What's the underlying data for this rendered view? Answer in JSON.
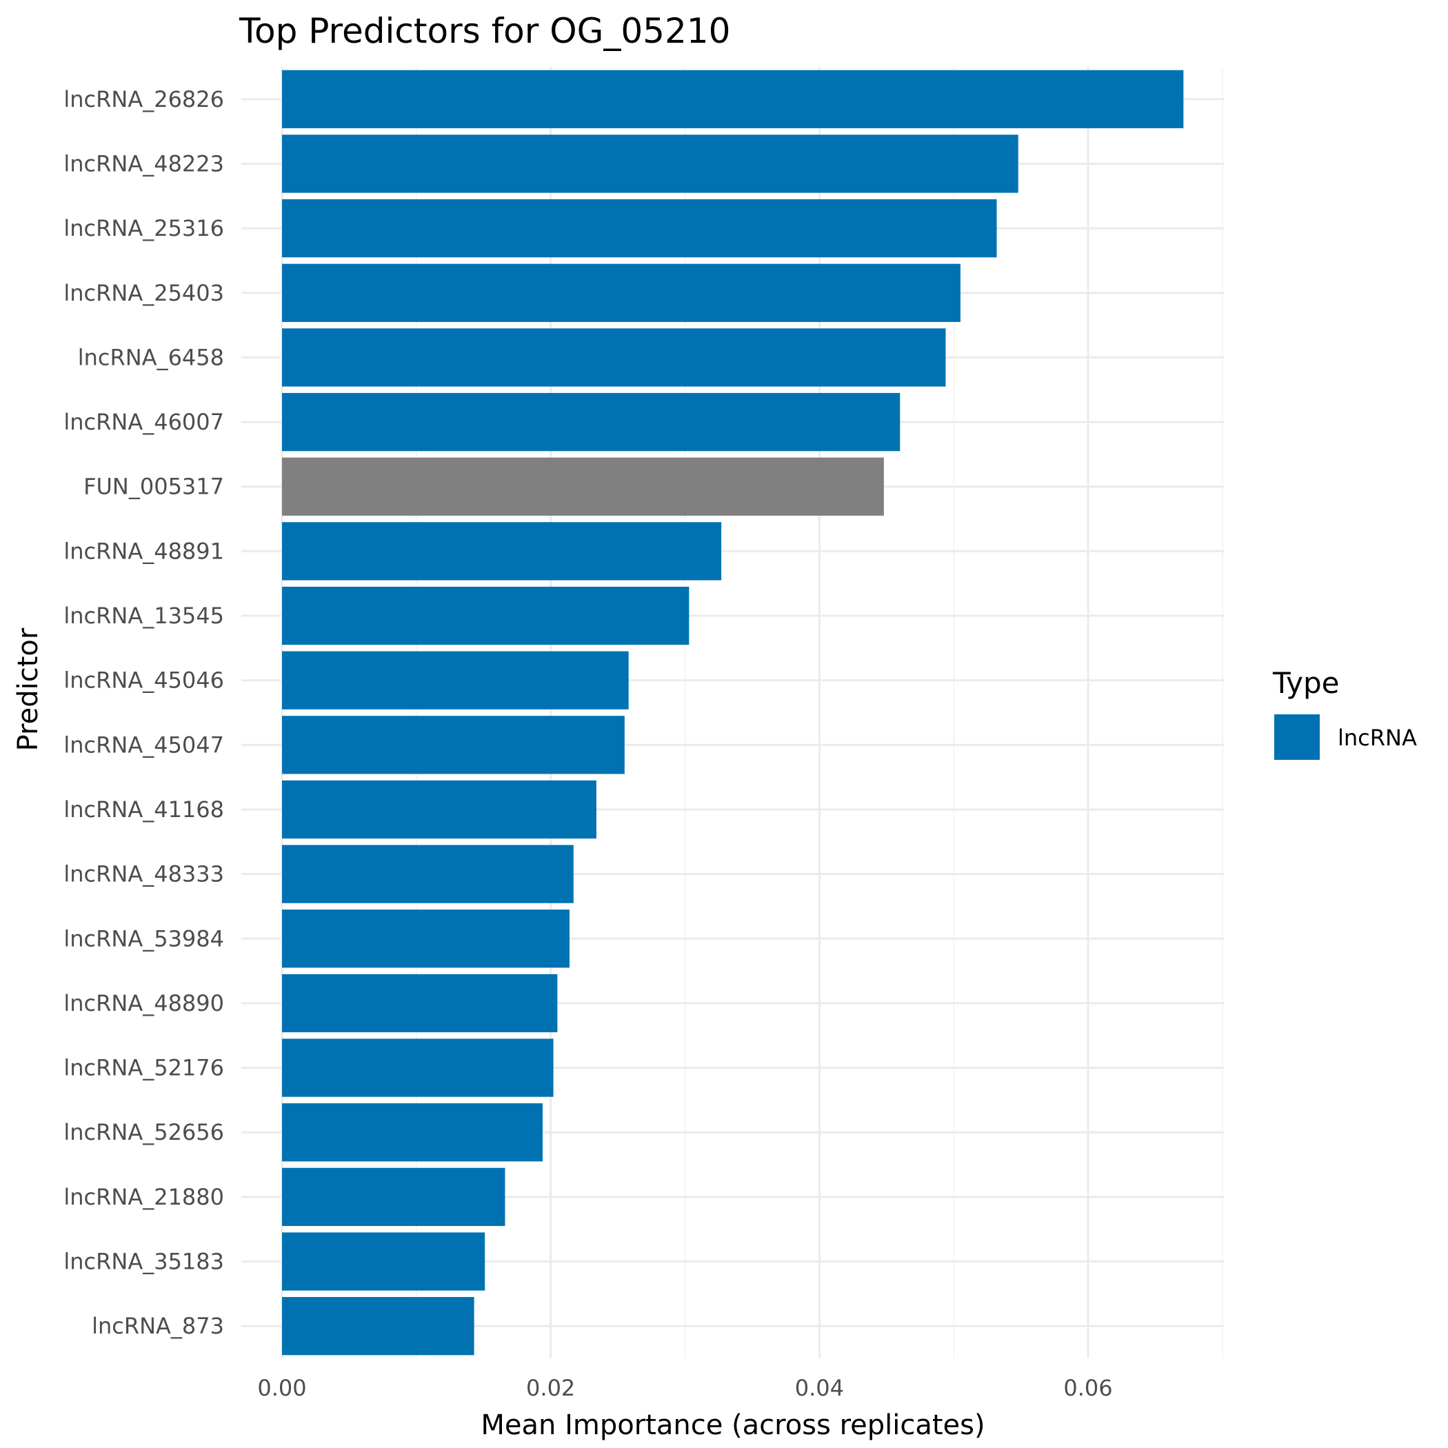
{
  "chart_data": {
    "type": "bar",
    "orientation": "horizontal",
    "title": "Top Predictors for OG_05210",
    "xlabel": "Mean Importance (across replicates)",
    "ylabel": "Predictor",
    "xlim": [
      0,
      0.07
    ],
    "xticks": [
      0.0,
      0.02,
      0.04,
      0.06
    ],
    "xtick_labels": [
      "0.00",
      "0.02",
      "0.04",
      "0.06"
    ],
    "grid": true,
    "legend": {
      "title": "Type",
      "position": "right",
      "entries": [
        {
          "label": "lncRNA",
          "color": "#0072B2"
        }
      ]
    },
    "categories": [
      "lncRNA_26826",
      "lncRNA_48223",
      "lncRNA_25316",
      "lncRNA_25403",
      "lncRNA_6458",
      "lncRNA_46007",
      "FUN_005317",
      "lncRNA_48891",
      "lncRNA_13545",
      "lncRNA_45046",
      "lncRNA_45047",
      "lncRNA_41168",
      "lncRNA_48333",
      "lncRNA_53984",
      "lncRNA_48890",
      "lncRNA_52176",
      "lncRNA_52656",
      "lncRNA_21880",
      "lncRNA_35183",
      "lncRNA_873"
    ],
    "values": [
      0.0671,
      0.0548,
      0.0532,
      0.0505,
      0.0494,
      0.046,
      0.0448,
      0.0327,
      0.0303,
      0.0258,
      0.0255,
      0.0234,
      0.0217,
      0.0214,
      0.0205,
      0.0202,
      0.0194,
      0.0166,
      0.0151,
      0.0143
    ],
    "bar_colors": [
      "#0072B2",
      "#0072B2",
      "#0072B2",
      "#0072B2",
      "#0072B2",
      "#0072B2",
      "#808080",
      "#0072B2",
      "#0072B2",
      "#0072B2",
      "#0072B2",
      "#0072B2",
      "#0072B2",
      "#0072B2",
      "#0072B2",
      "#0072B2",
      "#0072B2",
      "#0072B2",
      "#0072B2",
      "#0072B2"
    ]
  }
}
